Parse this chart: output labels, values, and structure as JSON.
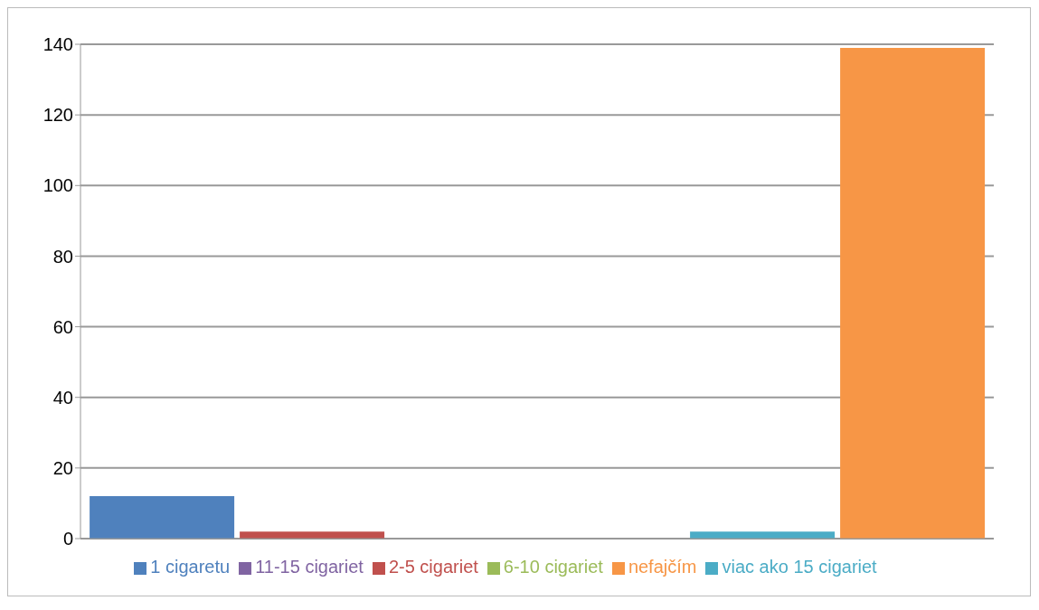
{
  "chart_data": {
    "type": "bar",
    "categories": [
      null
    ],
    "series": [
      {
        "name": "1 cigaretu",
        "color": "#4f81bd",
        "values": [
          12
        ]
      },
      {
        "name": "2-5 cigariet",
        "color": "#c0504d",
        "values": [
          2
        ]
      },
      {
        "name": "6-10 cigariet",
        "color": "#9bbb59",
        "values": [
          0
        ]
      },
      {
        "name": "11-15 cigariet",
        "color": "#8064a2",
        "values": [
          0
        ]
      },
      {
        "name": "viac ako 15 cigariet",
        "color": "#4bacc6",
        "values": [
          2
        ]
      },
      {
        "name": "nefajčím",
        "color": "#f79646",
        "values": [
          139
        ]
      }
    ],
    "ylim": [
      0,
      140
    ],
    "yticks": [
      0,
      20,
      40,
      60,
      80,
      100,
      120,
      140
    ],
    "grid": "y",
    "legend": "bottom"
  }
}
